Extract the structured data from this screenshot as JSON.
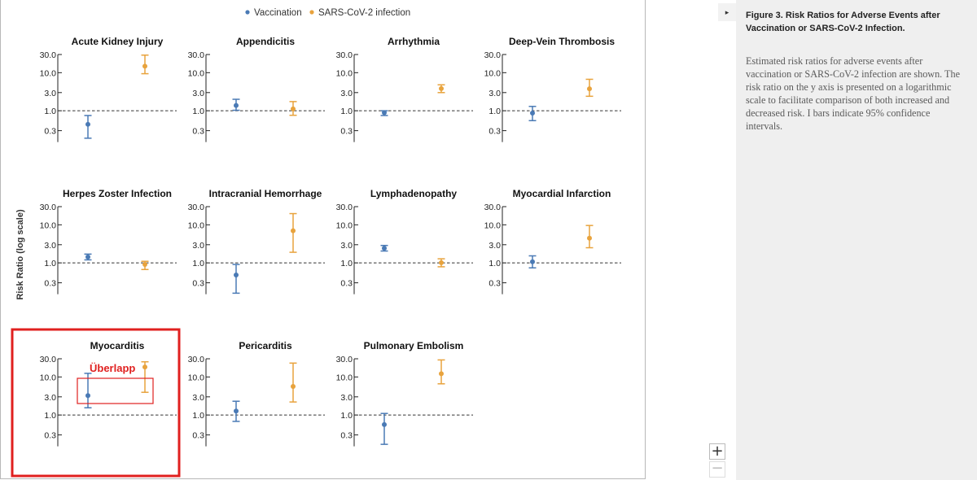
{
  "caption": {
    "title": "Figure 3. Risk Ratios for Adverse Events after Vaccination or SARS-CoV-2 Infection.",
    "body": "Estimated risk ratios for adverse events after vaccination or SARS-CoV-2 infection are shown. The risk ratio on the y axis is presented on a logarithmic scale to facilitate comparison of both increased and decreased risk. I bars indicate 95% confidence intervals."
  },
  "controls": {
    "collapse_icon": "triangle-right-icon",
    "collapse_glyph": "▸",
    "zoom_in_label": "+",
    "zoom_out_label": "−"
  },
  "annotation": {
    "label": "Überlapp",
    "color": "#e0201f"
  },
  "chart_data": {
    "type": "scatter",
    "log_y": true,
    "ylabel": "Risk Ratio (log scale)",
    "yticks": [
      0.3,
      1.0,
      3.0,
      10.0,
      30.0
    ],
    "ytick_labels": [
      "0.3",
      "1.0",
      "3.0",
      "10.0",
      "30.0"
    ],
    "reference_line": 1.0,
    "grid": false,
    "legend_position": "top-center",
    "series": [
      {
        "name": "Vaccination",
        "color": "#4a7ab5"
      },
      {
        "name": "SARS-CoV-2 infection",
        "color": "#e8a33d"
      }
    ],
    "panels": [
      {
        "title": "Acute Kidney Injury",
        "vaccination": {
          "rr": 0.44,
          "lo": 0.19,
          "hi": 0.75
        },
        "infection": {
          "rr": 14.8,
          "lo": 9.4,
          "hi": 28.9
        }
      },
      {
        "title": "Appendicitis",
        "vaccination": {
          "rr": 1.38,
          "lo": 1.03,
          "hi": 2.0
        },
        "infection": {
          "rr": 1.12,
          "lo": 0.76,
          "hi": 1.74
        }
      },
      {
        "title": "Arrhythmia",
        "vaccination": {
          "rr": 0.89,
          "lo": 0.75,
          "hi": 1.0
        },
        "infection": {
          "rr": 3.83,
          "lo": 3.0,
          "hi": 4.8
        }
      },
      {
        "title": "Deep-Vein Thrombosis",
        "vaccination": {
          "rr": 0.87,
          "lo": 0.55,
          "hi": 1.3
        },
        "infection": {
          "rr": 3.78,
          "lo": 2.4,
          "hi": 6.7
        }
      },
      {
        "title": "Herpes Zoster Infection",
        "vaccination": {
          "rr": 1.43,
          "lo": 1.2,
          "hi": 1.7
        },
        "infection": {
          "rr": 0.91,
          "lo": 0.67,
          "hi": 1.1
        }
      },
      {
        "title": "Intracranial Hemorrhage",
        "vaccination": {
          "rr": 0.48,
          "lo": 0.16,
          "hi": 0.91
        },
        "infection": {
          "rr": 7.0,
          "lo": 1.9,
          "hi": 19.7
        }
      },
      {
        "title": "Lymphadenopathy",
        "vaccination": {
          "rr": 2.43,
          "lo": 2.05,
          "hi": 2.87
        },
        "infection": {
          "rr": 1.01,
          "lo": 0.79,
          "hi": 1.28
        }
      },
      {
        "title": "Myocardial Infarction",
        "vaccination": {
          "rr": 1.07,
          "lo": 0.74,
          "hi": 1.53
        },
        "infection": {
          "rr": 4.47,
          "lo": 2.5,
          "hi": 9.6
        }
      },
      {
        "title": "Myocarditis",
        "vaccination": {
          "rr": 3.24,
          "lo": 1.55,
          "hi": 12.44
        },
        "infection": {
          "rr": 18.28,
          "lo": 3.95,
          "hi": 25.0
        }
      },
      {
        "title": "Pericarditis",
        "vaccination": {
          "rr": 1.27,
          "lo": 0.68,
          "hi": 2.3
        },
        "infection": {
          "rr": 5.63,
          "lo": 2.2,
          "hi": 23.1
        }
      },
      {
        "title": "Pulmonary Embolism",
        "vaccination": {
          "rr": 0.56,
          "lo": 0.17,
          "hi": 1.1
        },
        "infection": {
          "rr": 12.14,
          "lo": 6.6,
          "hi": 28.0
        }
      }
    ]
  }
}
